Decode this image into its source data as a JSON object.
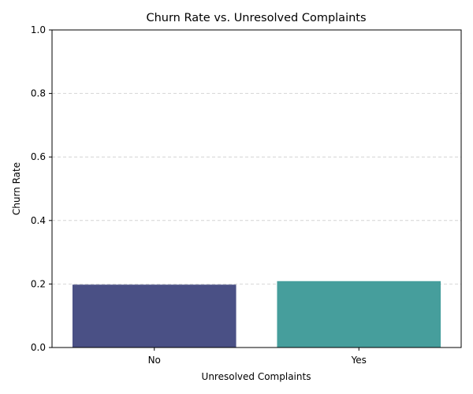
{
  "chart_data": {
    "type": "bar",
    "title": "Churn Rate vs. Unresolved Complaints",
    "xlabel": "Unresolved Complaints",
    "ylabel": "Churn Rate",
    "categories": [
      "No",
      "Yes"
    ],
    "values": [
      0.198,
      0.209
    ],
    "ylim": [
      0,
      1.0
    ],
    "yticks": [
      "0.0",
      "0.2",
      "0.4",
      "0.6",
      "0.8",
      "1.0"
    ],
    "grid": "y-dashed",
    "legend": "none",
    "colors": [
      "#4a5085",
      "#469e9c"
    ]
  }
}
